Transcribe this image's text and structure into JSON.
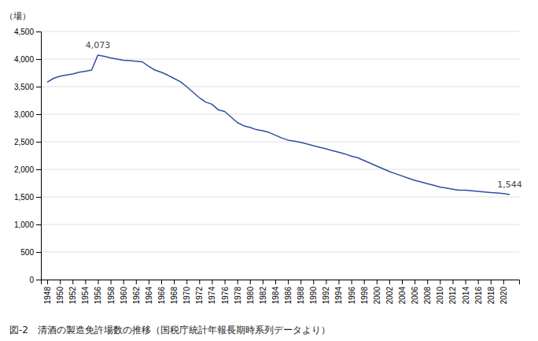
{
  "chart_data": {
    "type": "line",
    "title": "図-2　清酒の製造免許場数の推移（国税庁統計年報長期時系列データより）",
    "y_label": "（場）",
    "x": [
      1948,
      1949,
      1950,
      1951,
      1952,
      1953,
      1954,
      1955,
      1956,
      1957,
      1958,
      1959,
      1960,
      1961,
      1962,
      1963,
      1964,
      1965,
      1966,
      1967,
      1968,
      1969,
      1970,
      1971,
      1972,
      1973,
      1974,
      1975,
      1976,
      1977,
      1978,
      1979,
      1980,
      1981,
      1982,
      1983,
      1984,
      1985,
      1986,
      1987,
      1988,
      1989,
      1990,
      1991,
      1992,
      1993,
      1994,
      1995,
      1996,
      1997,
      1998,
      1999,
      2000,
      2001,
      2002,
      2003,
      2004,
      2005,
      2006,
      2007,
      2008,
      2009,
      2010,
      2011,
      2012,
      2013,
      2014,
      2015,
      2016,
      2017,
      2018,
      2019,
      2020,
      2021
    ],
    "values": [
      3580,
      3650,
      3690,
      3710,
      3730,
      3760,
      3780,
      3800,
      4073,
      4050,
      4020,
      4000,
      3980,
      3970,
      3960,
      3950,
      3870,
      3800,
      3760,
      3710,
      3650,
      3590,
      3500,
      3400,
      3300,
      3220,
      3180,
      3080,
      3050,
      2950,
      2850,
      2790,
      2760,
      2720,
      2700,
      2670,
      2620,
      2570,
      2530,
      2510,
      2490,
      2460,
      2430,
      2400,
      2370,
      2340,
      2310,
      2280,
      2240,
      2210,
      2160,
      2110,
      2060,
      2010,
      1960,
      1920,
      1880,
      1840,
      1800,
      1770,
      1740,
      1710,
      1680,
      1660,
      1640,
      1620,
      1620,
      1610,
      1600,
      1590,
      1580,
      1570,
      1560,
      1544
    ],
    "color": "#2e4fa5",
    "xlim": [
      1947,
      2022.5
    ],
    "xticks": [
      1948,
      1950,
      1952,
      1954,
      1956,
      1958,
      1960,
      1962,
      1964,
      1966,
      1968,
      1970,
      1972,
      1974,
      1976,
      1978,
      1980,
      1982,
      1984,
      1986,
      1988,
      1990,
      1992,
      1994,
      1996,
      1998,
      2000,
      2002,
      2004,
      2006,
      2008,
      2010,
      2012,
      2014,
      2016,
      2018,
      2020
    ],
    "ylim": [
      0,
      4500
    ],
    "yticks": [
      0,
      500,
      {
        "value": 1000,
        "label": "1,000"
      },
      {
        "value": 1500,
        "label": "1,500"
      },
      {
        "value": 2000,
        "label": "2,000"
      },
      {
        "value": 2500,
        "label": "2,500"
      },
      {
        "value": 3000,
        "label": "3,000"
      },
      {
        "value": 3500,
        "label": "3,500"
      },
      {
        "value": 4000,
        "label": "4,000"
      },
      {
        "value": 4500,
        "label": "4,500"
      }
    ],
    "grid": true,
    "annotations": [
      {
        "text": "4,073",
        "x": 1956,
        "y": 4073
      },
      {
        "text": "1,544",
        "x": 2021,
        "y": 1544
      }
    ]
  }
}
